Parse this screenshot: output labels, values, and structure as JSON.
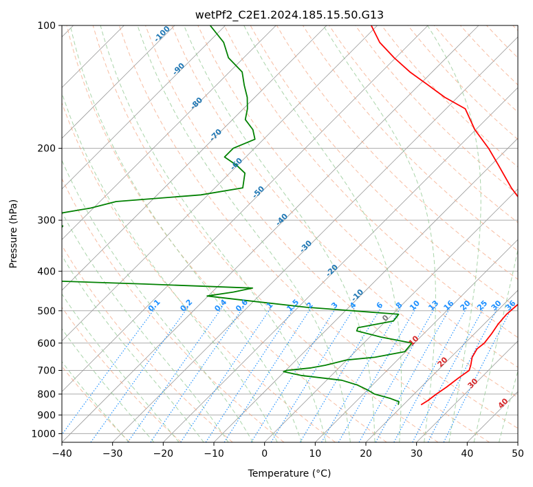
{
  "chart_data": {
    "type": "skew-t",
    "title": "wetPf2_C2E1.2024.185.15.50.G13",
    "xlabel": "Temperature (°C)",
    "ylabel": "Pressure (hPa)",
    "xlim": [
      -40,
      50
    ],
    "ylim": [
      1050,
      100
    ],
    "x_ticks": [
      -40,
      -30,
      -20,
      -10,
      0,
      10,
      20,
      30,
      40,
      50
    ],
    "x_tick_labels": [
      "−40",
      "−30",
      "−20",
      "−10",
      "0",
      "10",
      "20",
      "30",
      "40",
      "50"
    ],
    "y_ticks": [
      100,
      200,
      300,
      400,
      500,
      600,
      700,
      800,
      900,
      1000
    ],
    "y_tick_labels": [
      "100",
      "200",
      "300",
      "400",
      "500",
      "600",
      "700",
      "800",
      "900",
      "1000"
    ],
    "grid": true,
    "colors": {
      "temperature": "#ff0000",
      "dewpoint": "#008000",
      "isotherm": "#999999",
      "dry_adiabat": "#f4a582",
      "moist_adiabat": "#9acd9a",
      "mixing_ratio": "#1e90ff",
      "mixing_label": "#1e90ff",
      "lcl_label": "#1f77b4",
      "moist_label": "#d62728",
      "zero_label": "#777777"
    },
    "series": [
      {
        "name": "Temperature",
        "pressure": [
          850,
          830,
          800,
          770,
          730,
          700,
          680,
          650,
          620,
          600,
          570,
          540,
          510,
          480,
          460,
          440,
          420,
          400,
          380,
          360,
          330,
          300,
          270,
          250,
          220,
          200,
          180,
          160,
          150,
          140,
          130,
          120,
          110,
          100
        ],
        "values": [
          23.5,
          24,
          24.4,
          25,
          25.6,
          26.2,
          25.5,
          24.2,
          23.5,
          23.8,
          23.4,
          22.8,
          22.5,
          22.8,
          23.2,
          23.8,
          24.2,
          23.8,
          22.4,
          19.8,
          14.8,
          9.0,
          3.2,
          -1.5,
          -8.5,
          -13.8,
          -20.2,
          -26.2,
          -32.5,
          -38.2,
          -44.4,
          -50.3,
          -56.2,
          -61.2
        ]
      },
      {
        "name": "Dewpoint",
        "pressure": [
          850,
          835,
          820,
          800,
          780,
          760,
          740,
          720,
          705,
          700,
          690,
          680,
          660,
          650,
          630,
          600,
          580,
          560,
          550,
          530,
          510,
          490,
          470,
          460,
          450,
          440,
          430,
          420,
          410,
          400,
          390,
          380,
          370,
          350,
          330,
          310,
          300,
          290,
          280,
          270,
          260,
          250,
          230,
          220,
          210,
          200,
          190,
          180,
          170,
          160,
          150,
          140,
          130,
          120,
          110,
          100
        ],
        "values": [
          19,
          18.5,
          16.2,
          12.2,
          9.8,
          7,
          3,
          -6,
          -10.2,
          -9.8,
          -5.5,
          -3.2,
          0,
          5,
          9.8,
          9.5,
          2.2,
          -3.8,
          -4.2,
          1.5,
          1.2,
          -18.5,
          -33,
          -40.2,
          -35.8,
          -32.8,
          -55,
          -80,
          -92,
          -90,
          -88.8,
          -83.8,
          -81.2,
          -80,
          -82,
          -82.5,
          -86,
          -86.5,
          -80.5,
          -76.8,
          -61.4,
          -54.5,
          -57,
          -60.2,
          -64.2,
          -64.2,
          -61.7,
          -64,
          -67.5,
          -69.2,
          -71.5,
          -74.5,
          -77.5,
          -83,
          -87,
          -93
        ]
      }
    ],
    "dry_adiabat_labels": [
      "-100",
      "-90",
      "-80",
      "-70",
      "-60",
      "-50",
      "-40",
      "-30",
      "-20",
      "-10"
    ],
    "moist_adiabat_labels": [
      "0",
      "10",
      "20",
      "30",
      "40"
    ],
    "mixing_ratio_labels": [
      "0.1",
      "0.2",
      "0.4",
      "0.6",
      "1",
      "1.5",
      "2",
      "3",
      "4",
      "6",
      "8",
      "10",
      "13",
      "16",
      "20",
      "25",
      "30",
      "36"
    ]
  }
}
